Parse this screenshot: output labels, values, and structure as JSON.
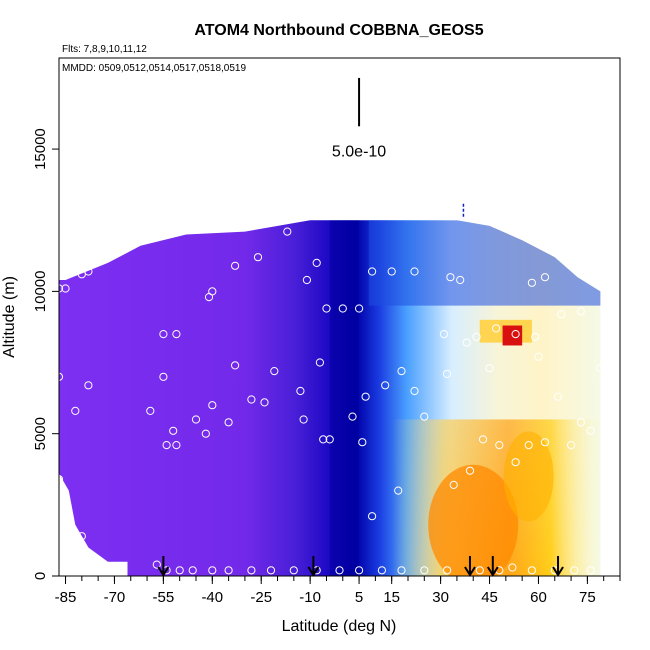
{
  "chart_data": {
    "type": "heatmap",
    "title": "ATOM4 Northbound COBBNA_GEOS5",
    "flights_label": "Flts: 7,8,9,10,11,12",
    "dates_label": "MMDD: 0509,0512,0514,0517,0518,0519",
    "xlabel": "Latitude (deg N)",
    "ylabel": "Altitude (m)",
    "xlim": [
      -87,
      85
    ],
    "ylim": [
      0,
      18200
    ],
    "x_ticks": [
      -85,
      -70,
      -55,
      -40,
      -25,
      -10,
      5,
      15,
      30,
      45,
      60,
      75
    ],
    "x_tick_labels": [
      "-85",
      "-70",
      "-55",
      "-40",
      "-25",
      "-10",
      "5",
      "15",
      "30",
      "45",
      "60",
      "75"
    ],
    "x_ticks_extra": [
      5
    ],
    "x_tick_labels_extra": [
      "5"
    ],
    "y_ticks": [
      0,
      5000,
      10000,
      15000
    ],
    "y_tick_labels": [
      "0",
      "5000",
      "10000",
      "15000"
    ],
    "scale_bar": {
      "label": "5.0e-10",
      "lat": 5,
      "alt_bottom": 15800,
      "alt_top": 17500
    },
    "colors": {
      "low": "#7b2ff0",
      "mid": "#0000c8",
      "light": "#dff2ff",
      "high": "#ffa500",
      "max": "#d00000"
    },
    "profile_tops": [
      {
        "lat": -87,
        "top": 10400
      },
      {
        "lat": -85,
        "top": 10400
      },
      {
        "lat": -72,
        "top": 11000
      },
      {
        "lat": -62,
        "top": 11600
      },
      {
        "lat": -48,
        "top": 12000
      },
      {
        "lat": -30,
        "top": 12100
      },
      {
        "lat": -10,
        "top": 12500
      },
      {
        "lat": 5,
        "top": 12500
      },
      {
        "lat": 20,
        "top": 12500
      },
      {
        "lat": 35,
        "top": 12500
      },
      {
        "lat": 45,
        "top": 12300
      },
      {
        "lat": 55,
        "top": 11800
      },
      {
        "lat": 65,
        "top": 11200
      },
      {
        "lat": 72,
        "top": 10500
      },
      {
        "lat": 79,
        "top": 10000
      },
      {
        "lat": 79,
        "top": 0
      }
    ],
    "profile_bottoms": [
      {
        "lat": -87,
        "bottom": 3600
      },
      {
        "lat": -84,
        "bottom": 3000
      },
      {
        "lat": -82,
        "bottom": 1800
      },
      {
        "lat": -78,
        "bottom": 1000
      },
      {
        "lat": -72,
        "bottom": 500
      },
      {
        "lat": -66,
        "bottom": 500
      },
      {
        "lat": -66,
        "bottom": 0
      }
    ],
    "observations": [
      {
        "lat": -87,
        "alt": 10100
      },
      {
        "lat": -85,
        "alt": 10100
      },
      {
        "lat": -80,
        "alt": 10600
      },
      {
        "lat": -78,
        "alt": 10700
      },
      {
        "lat": -75,
        "alt": 11300
      },
      {
        "lat": -73,
        "alt": 11400
      },
      {
        "lat": -70,
        "alt": 11500
      },
      {
        "lat": -41,
        "alt": 9800
      },
      {
        "lat": -40,
        "alt": 10000
      },
      {
        "lat": -33,
        "alt": 10900
      },
      {
        "lat": -26,
        "alt": 11200
      },
      {
        "lat": -17,
        "alt": 12100
      },
      {
        "lat": -11,
        "alt": 10400
      },
      {
        "lat": -8,
        "alt": 11000
      },
      {
        "lat": -5,
        "alt": 9400
      },
      {
        "lat": 0,
        "alt": 9400
      },
      {
        "lat": 5,
        "alt": 9400
      },
      {
        "lat": 9,
        "alt": 10700
      },
      {
        "lat": 15,
        "alt": 10700
      },
      {
        "lat": 22,
        "alt": 10700
      },
      {
        "lat": 33,
        "alt": 10500
      },
      {
        "lat": 36,
        "alt": 10400
      },
      {
        "lat": 73,
        "alt": 11100
      },
      {
        "lat": 75,
        "alt": 10900
      },
      {
        "lat": 76,
        "alt": 11100
      },
      {
        "lat": -55,
        "alt": 8500
      },
      {
        "lat": -51,
        "alt": 8500
      },
      {
        "lat": -87,
        "alt": 7000
      },
      {
        "lat": -78,
        "alt": 6700
      },
      {
        "lat": -55,
        "alt": 7000
      },
      {
        "lat": -33,
        "alt": 7400
      },
      {
        "lat": -21,
        "alt": 7200
      },
      {
        "lat": -13,
        "alt": 6500
      },
      {
        "lat": -7,
        "alt": 7500
      },
      {
        "lat": -28,
        "alt": 6200
      },
      {
        "lat": -24,
        "alt": 6100
      },
      {
        "lat": -42,
        "alt": 5000
      },
      {
        "lat": -40,
        "alt": 6000
      },
      {
        "lat": -45,
        "alt": 5500
      },
      {
        "lat": -35,
        "alt": 5400
      },
      {
        "lat": -52,
        "alt": 5100
      },
      {
        "lat": -54,
        "alt": 4600
      },
      {
        "lat": -51,
        "alt": 4600
      },
      {
        "lat": -59,
        "alt": 5800
      },
      {
        "lat": -82,
        "alt": 5800
      },
      {
        "lat": -12,
        "alt": 5500
      },
      {
        "lat": -6,
        "alt": 4800
      },
      {
        "lat": -4,
        "alt": 4800
      },
      {
        "lat": 3,
        "alt": 5600
      },
      {
        "lat": 6,
        "alt": 4700
      },
      {
        "lat": 7,
        "alt": 6300
      },
      {
        "lat": 13,
        "alt": 6700
      },
      {
        "lat": 18,
        "alt": 7200
      },
      {
        "lat": 22,
        "alt": 6500
      },
      {
        "lat": 25,
        "alt": 5600
      },
      {
        "lat": 32,
        "alt": 7100
      },
      {
        "lat": 31,
        "alt": 8500
      },
      {
        "lat": 38,
        "alt": 8200
      },
      {
        "lat": 41,
        "alt": 8400
      },
      {
        "lat": 45,
        "alt": 7300
      },
      {
        "lat": 47,
        "alt": 8700
      },
      {
        "lat": 53,
        "alt": 8500
      },
      {
        "lat": 59,
        "alt": 8400
      },
      {
        "lat": 58,
        "alt": 10300
      },
      {
        "lat": 62,
        "alt": 10500
      },
      {
        "lat": 67,
        "alt": 9200
      },
      {
        "lat": 73,
        "alt": 9300
      },
      {
        "lat": 80,
        "alt": 9400
      },
      {
        "lat": 79,
        "alt": 7300
      },
      {
        "lat": 60,
        "alt": 7700
      },
      {
        "lat": 66,
        "alt": 6300
      },
      {
        "lat": 73,
        "alt": 5400
      },
      {
        "lat": 76,
        "alt": 5100
      },
      {
        "lat": 70,
        "alt": 4600
      },
      {
        "lat": 62,
        "alt": 4700
      },
      {
        "lat": 57,
        "alt": 4600
      },
      {
        "lat": 53,
        "alt": 4000
      },
      {
        "lat": 48,
        "alt": 4600
      },
      {
        "lat": 43,
        "alt": 4800
      },
      {
        "lat": 39,
        "alt": 3700
      },
      {
        "lat": 34,
        "alt": 3200
      },
      {
        "lat": 17,
        "alt": 3000
      },
      {
        "lat": 9,
        "alt": 2100
      },
      {
        "lat": -87,
        "alt": 3400
      },
      {
        "lat": -80,
        "alt": 1400
      },
      {
        "lat": -57,
        "alt": 400
      },
      {
        "lat": -54,
        "alt": 200
      },
      {
        "lat": -50,
        "alt": 200
      },
      {
        "lat": -46,
        "alt": 200
      },
      {
        "lat": -40,
        "alt": 200
      },
      {
        "lat": -35,
        "alt": 200
      },
      {
        "lat": -28,
        "alt": 200
      },
      {
        "lat": -22,
        "alt": 200
      },
      {
        "lat": -15,
        "alt": 200
      },
      {
        "lat": -8,
        "alt": 200
      },
      {
        "lat": -1,
        "alt": 200
      },
      {
        "lat": 5,
        "alt": 200
      },
      {
        "lat": 12,
        "alt": 200
      },
      {
        "lat": 18,
        "alt": 200
      },
      {
        "lat": 25,
        "alt": 200
      },
      {
        "lat": 32,
        "alt": 200
      },
      {
        "lat": 42,
        "alt": 200
      },
      {
        "lat": 48,
        "alt": 200
      },
      {
        "lat": 52,
        "alt": 300
      },
      {
        "lat": 58,
        "alt": 200
      },
      {
        "lat": 65,
        "alt": 200
      },
      {
        "lat": 71,
        "alt": 200
      },
      {
        "lat": 76,
        "alt": 200
      }
    ],
    "arrows": [
      -55,
      -9,
      39,
      46,
      66
    ],
    "marker_ticks": [
      {
        "lat": 37,
        "alt": 12800
      }
    ]
  }
}
